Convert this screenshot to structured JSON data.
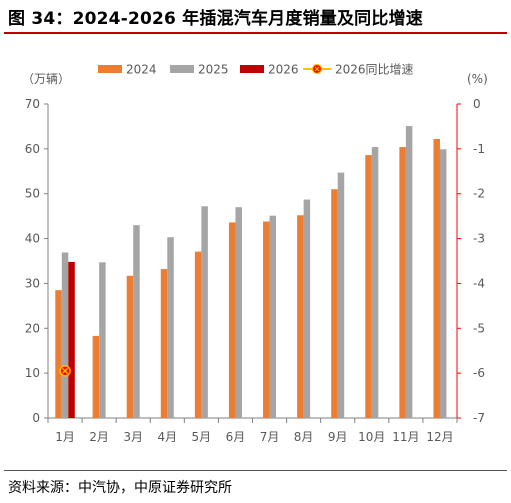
{
  "figure": {
    "title": "图 34：2024-2026 年插混汽车月度销量及同比增速",
    "source": "资料来源：中汽协，中原证券研究所"
  },
  "chart_data": {
    "type": "bar",
    "categories": [
      "1月",
      "2月",
      "3月",
      "4月",
      "5月",
      "6月",
      "7月",
      "8月",
      "9月",
      "10月",
      "11月",
      "12月"
    ],
    "series": [
      {
        "name": "2024",
        "axis": "left",
        "color": "#ed7d31",
        "values": [
          28.5,
          18.3,
          31.7,
          33.2,
          37.1,
          43.6,
          43.8,
          45.2,
          51.0,
          58.6,
          60.4,
          62.2
        ]
      },
      {
        "name": "2025",
        "axis": "left",
        "color": "#a5a5a5",
        "values": [
          36.9,
          34.7,
          43.0,
          40.3,
          47.2,
          47.0,
          45.1,
          48.7,
          54.7,
          60.4,
          65.1,
          59.9
        ]
      },
      {
        "name": "2026",
        "axis": "left",
        "color": "#c00000",
        "values": [
          34.8,
          null,
          null,
          null,
          null,
          null,
          null,
          null,
          null,
          null,
          null,
          null
        ]
      },
      {
        "name": "2026同比增速",
        "axis": "right",
        "type": "scatter",
        "color": "#ffc000",
        "marker_color": "#ff0000",
        "values": [
          -5.95,
          null,
          null,
          null,
          null,
          null,
          null,
          null,
          null,
          null,
          null,
          null
        ]
      }
    ],
    "y_left": {
      "label": "（万辆）",
      "min": 0,
      "max": 70,
      "ticks": [
        0,
        10,
        20,
        30,
        40,
        50,
        60,
        70
      ]
    },
    "y_right": {
      "label": "(%)",
      "min": -7,
      "max": 0,
      "ticks": [
        0,
        -1,
        -2,
        -3,
        -4,
        -5,
        -6,
        -7
      ],
      "color": "#ff0000"
    },
    "legend": {
      "position": "top"
    },
    "grid": false
  }
}
